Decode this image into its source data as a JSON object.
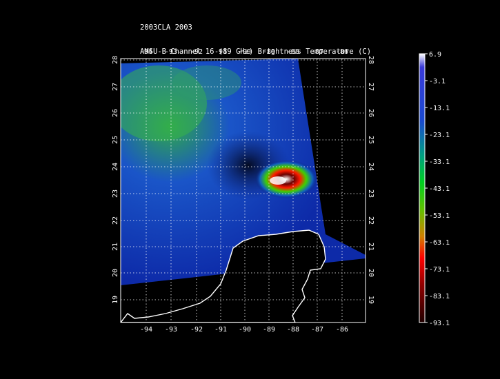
{
  "header": {
    "line1": "2003CLA 2003",
    "line2": "AMSU-B Channel 16 (89 GHz) Brightness Temperature (C)",
    "line3": "0712 Time: 0429 UTC",
    "line4": "NOAA-17"
  },
  "map": {
    "lon_ticks": [
      "-94",
      "-93",
      "-92",
      "-91",
      "-90",
      "-89",
      "-88",
      "-87",
      "-86"
    ],
    "lat_ticks": [
      "28",
      "27",
      "26",
      "25",
      "24",
      "23",
      "22",
      "21",
      "20",
      "19"
    ],
    "lon_range": [
      -95,
      -85
    ],
    "lat_range": [
      18.2,
      28.2
    ],
    "grid": true,
    "coastline_color": "#ffffff"
  },
  "colorbar": {
    "labels": [
      "6.9",
      "-3.1",
      "-13.1",
      "-23.1",
      "-33.1",
      "-43.1",
      "-53.1",
      "-63.1",
      "-73.1",
      "-83.1",
      "-93.1"
    ],
    "colors": [
      "#ffffff",
      "#2a2acf",
      "#1f3ad6",
      "#1a5ad0",
      "#00a060",
      "#00c81e",
      "#30d000",
      "#c8a000",
      "#ff0000",
      "#a00000",
      "#300000"
    ]
  }
}
